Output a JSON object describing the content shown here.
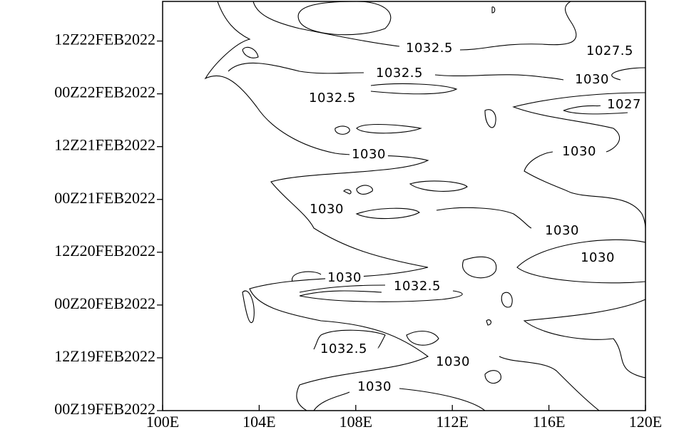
{
  "chart_data": {
    "type": "contour",
    "xlim": [
      100,
      120
    ],
    "xticks": [
      {
        "value": 100,
        "label": "100E"
      },
      {
        "value": 104,
        "label": "104E"
      },
      {
        "value": 108,
        "label": "108E"
      },
      {
        "value": 112,
        "label": "112E"
      },
      {
        "value": 116,
        "label": "116E"
      },
      {
        "value": 120,
        "label": "120E"
      }
    ],
    "ylim": [
      0,
      93
    ],
    "yticks": [
      {
        "value": 0,
        "label": "00Z19FEB2022"
      },
      {
        "value": 12,
        "label": "12Z19FEB2022"
      },
      {
        "value": 24,
        "label": "00Z20FEB2022"
      },
      {
        "value": 36,
        "label": "12Z20FEB2022"
      },
      {
        "value": 48,
        "label": "00Z21FEB2022"
      },
      {
        "value": 60,
        "label": "12Z21FEB2022"
      },
      {
        "value": 72,
        "label": "00Z22FEB2022"
      },
      {
        "value": 84,
        "label": "12Z22FEB2022"
      }
    ],
    "contour_labels": [
      1032.5,
      1027.5,
      1032.5,
      1030,
      1032.5,
      1027,
      1030,
      1030,
      1030,
      1030,
      1030,
      1030,
      1032.5,
      1032.5,
      1030,
      1030
    ]
  }
}
